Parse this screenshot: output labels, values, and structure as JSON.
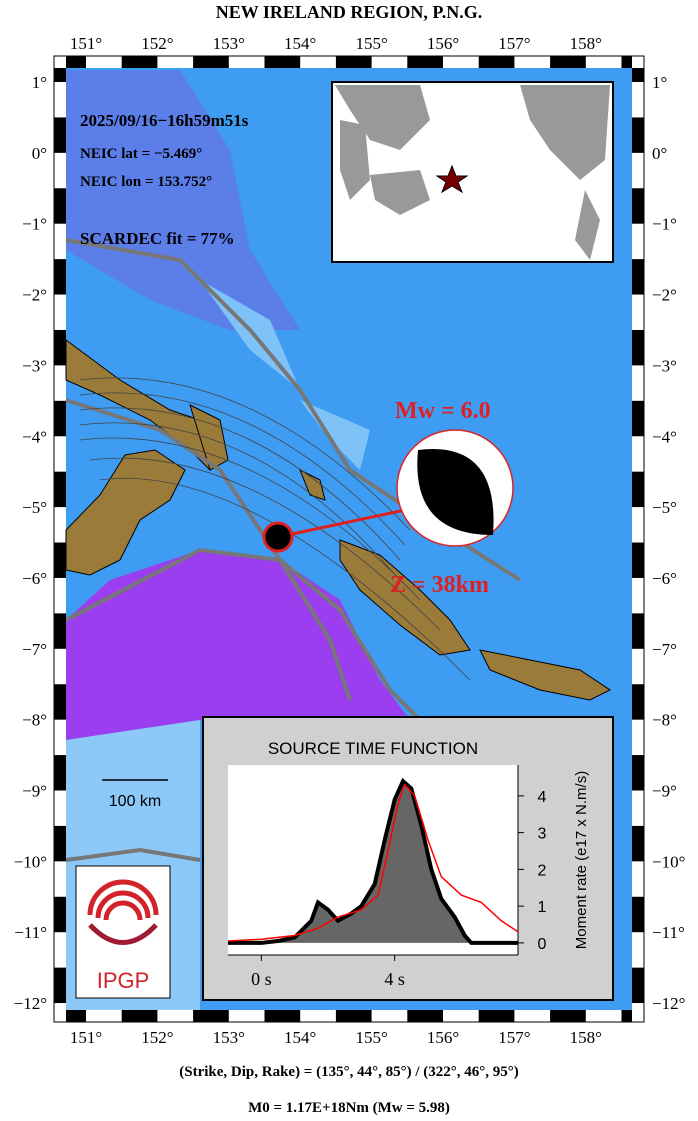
{
  "title": "NEW IRELAND REGION, P.N.G.",
  "lon_labels": [
    "151°",
    "152°",
    "153°",
    "154°",
    "155°",
    "156°",
    "157°",
    "158°"
  ],
  "lat_labels": [
    "1°",
    "0°",
    "−1°",
    "−2°",
    "−3°",
    "−4°",
    "−5°",
    "−6°",
    "−7°",
    "−8°",
    "−9°",
    "−10°",
    "−11°",
    "−12°"
  ],
  "info": {
    "date": "2025/09/16−16h59m51s",
    "lat": "NEIC lat  = −5.469°",
    "lon": "NEIC lon = 153.752°",
    "fit": "SCARDEC fit = 77%"
  },
  "magnitude": "Mw = 6.0",
  "depth": "Z =  38km",
  "scale": "100 km",
  "logo": "IPGP",
  "stf": {
    "title": "SOURCE TIME FUNCTION",
    "ylabel": "Moment rate (e17 x N.m/s)",
    "xlim": [
      -1,
      7.7
    ],
    "ylim": [
      -0.33,
      4.84
    ],
    "yticks": [
      0,
      1,
      2,
      3,
      4
    ],
    "xticks": [
      {
        "value": 0,
        "label": "0 s"
      },
      {
        "value": 4,
        "label": "4 s"
      }
    ],
    "series": [
      {
        "color": "#000000",
        "x": [
          -1,
          0,
          0.5,
          1,
          1.5,
          1.7,
          2.0,
          2.3,
          2.7,
          3.0,
          3.4,
          3.7,
          4.0,
          4.25,
          4.5,
          4.8,
          5.1,
          5.4,
          5.8,
          6.1,
          6.3,
          7.7
        ],
        "values": [
          0,
          0,
          0.05,
          0.15,
          0.6,
          1.1,
          0.9,
          0.6,
          0.8,
          1.0,
          1.6,
          2.8,
          3.9,
          4.4,
          4.2,
          3.2,
          2.0,
          1.2,
          0.7,
          0.2,
          0,
          0
        ]
      },
      {
        "color": "#ff0000",
        "x": [
          -1,
          0,
          1,
          1.7,
          2.3,
          3,
          3.5,
          3.8,
          4.1,
          4.3,
          4.6,
          5,
          5.4,
          6,
          6.6,
          7.2,
          7.7
        ],
        "values": [
          0.05,
          0.1,
          0.2,
          0.4,
          0.7,
          0.9,
          1.3,
          2.5,
          3.8,
          4.3,
          4.0,
          2.8,
          1.8,
          1.3,
          1.1,
          0.6,
          0.3
        ]
      }
    ]
  },
  "footer": {
    "planes": "(Strike, Dip, Rake) = (135°, 44°, 85°) / (322°, 46°, 95°)",
    "moment": "M0 = 1.17E+18Nm  (Mw = 5.98)"
  }
}
